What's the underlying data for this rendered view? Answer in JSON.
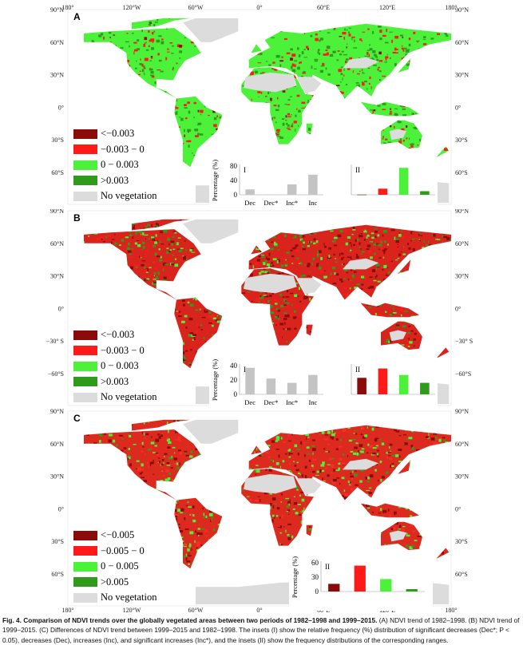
{
  "axes": {
    "lon_labels": [
      "180°",
      "120°W",
      "60°W",
      "0°",
      "60°E",
      "120°E",
      "180°"
    ],
    "lat_labels_A": [
      "90°N",
      "60°N",
      "30°N",
      "0°",
      "30°S",
      "60°S"
    ],
    "lat_labels_B": [
      "90°N",
      "60°N",
      "30°N",
      "0°",
      "−30° S",
      "−60°S"
    ],
    "lat_labels_C": [
      "90°N",
      "60°N",
      "30°N",
      "0°",
      "30°S",
      "60°S"
    ]
  },
  "colors": {
    "strong_decrease": "#8b0a0a",
    "decrease": "#ff1a1a",
    "increase": "#4cf23a",
    "strong_increase": "#2f9a1c",
    "no_vegetation": "#dcdcdc"
  },
  "panels": [
    {
      "label": "A",
      "legend": [
        "<−0.003",
        "−0.003 − 0",
        "0 − 0.003",
        ">0.003",
        "No vegetation"
      ]
    },
    {
      "label": "B",
      "legend": [
        "<−0.003",
        "−0.003 − 0",
        "0 − 0.003",
        ">0.003",
        "No vegetation"
      ]
    },
    {
      "label": "C",
      "legend": [
        "<−0.005",
        "−0.005 − 0",
        "0 − 0.005",
        ">0.005",
        "No vegetation"
      ]
    }
  ],
  "chart_data": [
    {
      "panel": "A",
      "inset": "I",
      "type": "bar",
      "ylabel": "Percentage (%)",
      "categories": [
        "Dec",
        "Dec*",
        "Inc*",
        "Inc"
      ],
      "values": [
        15,
        0.5,
        29,
        56
      ],
      "ylim": [
        0,
        80
      ],
      "yticks": [
        0,
        40,
        80
      ]
    },
    {
      "panel": "A",
      "inset": "II",
      "type": "bar",
      "categories": [
        "<−0.003",
        "−0.003 − 0",
        "0 − 0.003",
        ">0.003"
      ],
      "values": [
        0.5,
        17,
        75,
        10
      ],
      "ylim": [
        0,
        80
      ]
    },
    {
      "panel": "B",
      "inset": "I",
      "type": "bar",
      "ylabel": "Percentage (%)",
      "categories": [
        "Dec",
        "Dec*",
        "Inc*",
        "Inc"
      ],
      "values": [
        37,
        22,
        16,
        27
      ],
      "ylim": [
        0,
        40
      ],
      "yticks": [
        0,
        20,
        40
      ]
    },
    {
      "panel": "B",
      "inset": "II",
      "type": "bar",
      "categories": [
        "<−0.003",
        "−0.003 − 0",
        "0 − 0.003",
        ">0.003"
      ],
      "values": [
        23,
        36,
        27,
        16
      ],
      "ylim": [
        0,
        40
      ]
    },
    {
      "panel": "C",
      "inset": "II",
      "type": "bar",
      "ylabel": "Percentage (%)",
      "categories": [
        "<−0.005",
        "−0.005 − 0",
        "0 − 0.005",
        ">0.005"
      ],
      "values": [
        16,
        54,
        26,
        5
      ],
      "ylim": [
        0,
        60
      ],
      "yticks": [
        0,
        30,
        60
      ]
    }
  ],
  "caption": {
    "title": "Fig. 4.  Comparison of NDVI trends over the globally vegetated areas between two periods of 1982–1998 and 1999–2015.",
    "body": " (A) NDVI trend of 1982–1998. (B) NDVI trend of 1999–2015. (C) Differences of NDVI trend between 1999–2015 and 1982–1998. The insets (I) show the relative frequency (%) distribution of significant decreases (Dec*; P < 0.05), decreases (Dec), increases (Inc), and significant increases (Inc*), and the insets (II) show the frequency distributions of the corresponding ranges."
  }
}
